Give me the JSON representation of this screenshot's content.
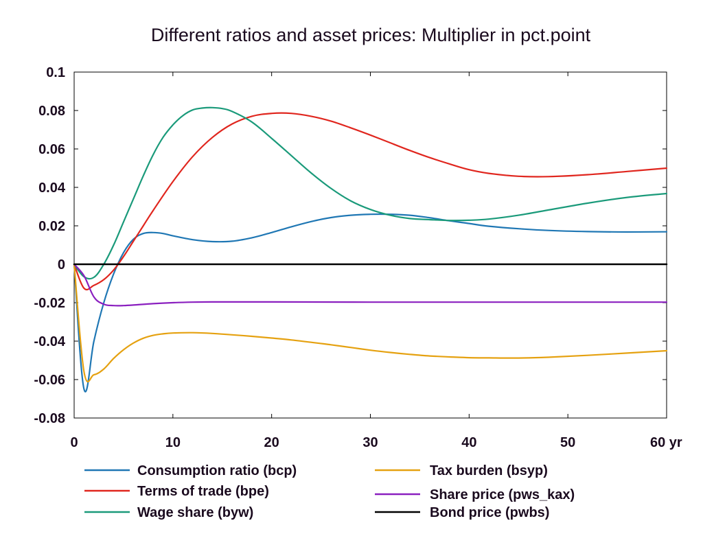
{
  "chart_data": {
    "type": "line",
    "title": "Different ratios and asset prices: Multiplier in pct.point",
    "xlabel": "",
    "ylabel": "",
    "xlim": [
      0,
      60
    ],
    "ylim": [
      -0.08,
      0.1
    ],
    "x_ticks": [
      0,
      10,
      20,
      30,
      40,
      50,
      60
    ],
    "x_tick_labels": [
      "0",
      "10",
      "20",
      "30",
      "40",
      "50",
      "60 yr"
    ],
    "y_ticks": [
      0.1,
      0.08,
      0.06,
      0.04,
      0.02,
      0,
      -0.02,
      -0.04,
      -0.06,
      -0.08
    ],
    "y_tick_labels": [
      "0.1",
      "0.08",
      "0.06",
      "0.04",
      "0.02",
      "0",
      "-0.02",
      "-0.04",
      "-0.06",
      "-0.08"
    ],
    "grid": false,
    "legend_position": "bottom",
    "series": [
      {
        "name": "Consumption ratio (bcp)",
        "color": "#1f77b4",
        "x": [
          0,
          1,
          2,
          3,
          4,
          5,
          6,
          7,
          8,
          9,
          10,
          12,
          14,
          16,
          18,
          20,
          22,
          24,
          26,
          28,
          30,
          32,
          34,
          36,
          38,
          40,
          42,
          45,
          48,
          52,
          56,
          60
        ],
        "y": [
          0,
          -0.065,
          -0.04,
          -0.02,
          -0.005,
          0.006,
          0.013,
          0.016,
          0.0165,
          0.016,
          0.0148,
          0.0128,
          0.0118,
          0.012,
          0.0138,
          0.0165,
          0.0195,
          0.0222,
          0.0243,
          0.0255,
          0.026,
          0.026,
          0.0255,
          0.0242,
          0.0226,
          0.0212,
          0.0198,
          0.0185,
          0.0176,
          0.017,
          0.0168,
          0.0169
        ]
      },
      {
        "name": "Terms of trade (bpe)",
        "color": "#e0261e",
        "x": [
          0,
          1,
          2,
          3,
          4,
          5,
          6,
          7,
          8,
          10,
          12,
          14,
          16,
          18,
          20,
          22,
          24,
          26,
          28,
          30,
          32,
          34,
          36,
          38,
          40,
          42,
          45,
          48,
          52,
          56,
          60
        ],
        "y": [
          0,
          -0.0125,
          -0.011,
          -0.008,
          -0.003,
          0.004,
          0.012,
          0.02,
          0.028,
          0.043,
          0.056,
          0.066,
          0.073,
          0.077,
          0.0785,
          0.0785,
          0.077,
          0.0745,
          0.071,
          0.0672,
          0.0632,
          0.0592,
          0.0555,
          0.0522,
          0.0492,
          0.0473,
          0.0458,
          0.0456,
          0.0466,
          0.0483,
          0.05
        ]
      },
      {
        "name": "Wage share (byw)",
        "color": "#1a9a7a",
        "x": [
          0,
          1,
          2,
          3,
          4,
          5,
          6,
          7,
          8,
          9,
          10,
          11,
          12,
          13,
          14,
          15,
          16,
          18,
          20,
          22,
          24,
          26,
          28,
          30,
          32,
          34,
          36,
          38,
          40,
          42,
          45,
          48,
          52,
          56,
          60
        ],
        "y": [
          0,
          -0.0065,
          -0.0068,
          0.0,
          0.01,
          0.022,
          0.034,
          0.046,
          0.057,
          0.066,
          0.0725,
          0.0773,
          0.0803,
          0.0813,
          0.0815,
          0.081,
          0.0795,
          0.074,
          0.0655,
          0.0565,
          0.0475,
          0.0395,
          0.033,
          0.0285,
          0.0255,
          0.0238,
          0.0232,
          0.0228,
          0.0229,
          0.0235,
          0.0255,
          0.0282,
          0.0318,
          0.0348,
          0.0368
        ]
      },
      {
        "name": "Tax burden (bsyp)",
        "color": "#e5a110",
        "x": [
          0,
          1,
          2,
          3,
          4,
          5,
          6,
          7,
          8,
          9,
          10,
          12,
          14,
          16,
          18,
          20,
          22,
          24,
          26,
          28,
          30,
          32,
          34,
          36,
          38,
          40,
          42,
          45,
          48,
          52,
          56,
          60
        ],
        "y": [
          0,
          -0.056,
          -0.0575,
          -0.0545,
          -0.049,
          -0.0445,
          -0.041,
          -0.0385,
          -0.037,
          -0.0362,
          -0.0358,
          -0.0356,
          -0.036,
          -0.0367,
          -0.0375,
          -0.0384,
          -0.0394,
          -0.0406,
          -0.0419,
          -0.0433,
          -0.0447,
          -0.0459,
          -0.0469,
          -0.0477,
          -0.0482,
          -0.0486,
          -0.0487,
          -0.0488,
          -0.0484,
          -0.0474,
          -0.0462,
          -0.045
        ]
      },
      {
        "name": "Share price (pws_kax)",
        "color": "#8a1fbf",
        "x": [
          0,
          1,
          2,
          3,
          4,
          5,
          6,
          8,
          10,
          12,
          14,
          16,
          20,
          30,
          40,
          50,
          60
        ],
        "y": [
          0,
          -0.006,
          -0.017,
          -0.0208,
          -0.0215,
          -0.0215,
          -0.0212,
          -0.0205,
          -0.02,
          -0.0197,
          -0.0196,
          -0.0196,
          -0.0196,
          -0.0197,
          -0.0197,
          -0.0197,
          -0.0197
        ]
      },
      {
        "name": "Bond price (pwbs)",
        "color": "#000000",
        "x": [
          0,
          60
        ],
        "y": [
          0,
          0
        ]
      }
    ]
  }
}
